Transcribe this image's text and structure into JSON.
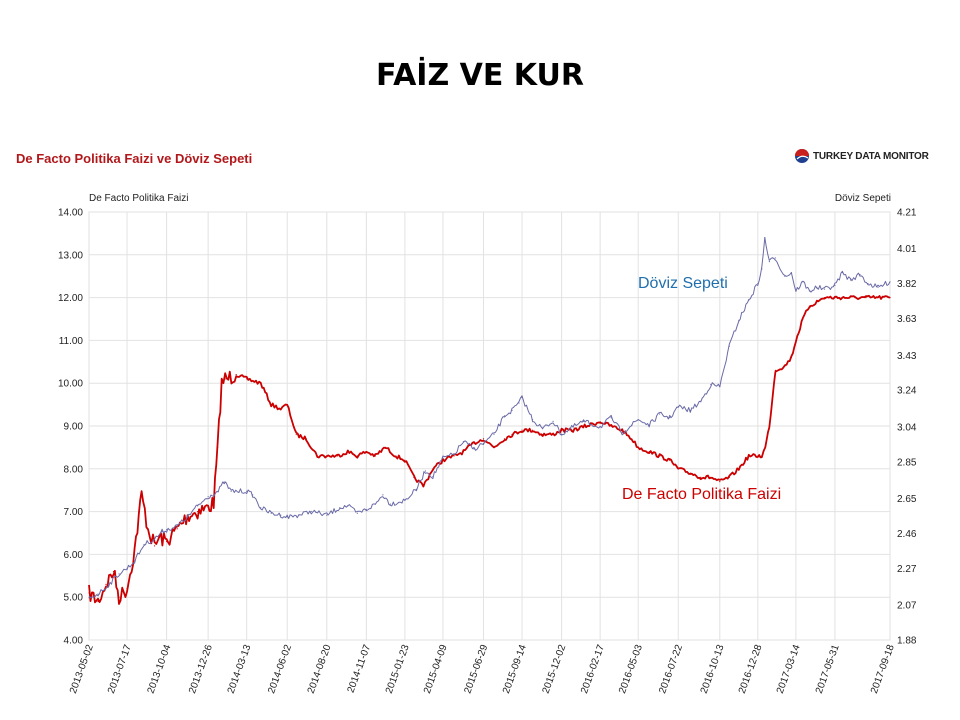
{
  "slide": {
    "title": "FAİZ VE KUR"
  },
  "brand": {
    "name": "TURKEY DATA MONITOR"
  },
  "annotations": {
    "doviz": "Döviz Sepeti",
    "faiz": "De Facto Politika Faizi"
  },
  "colors": {
    "faiz": "#cc0000",
    "doviz": "#6a6aa8",
    "title": "#b2181b",
    "grid": "#e2e2e2"
  },
  "chart_data": {
    "type": "line",
    "title": "De Facto Politika Faizi ve Döviz Sepeti",
    "y_left_label": "De Facto Politika Faizi",
    "y_right_label": "Döviz Sepeti",
    "x_type": "date",
    "x_range": [
      "2013-05-02",
      "2017-09-18"
    ],
    "y_left_range": [
      4.0,
      14.0
    ],
    "y_left_ticks": [
      "4.00",
      "5.00",
      "6.00",
      "7.00",
      "8.00",
      "9.00",
      "10.00",
      "11.00",
      "12.00",
      "13.00",
      "14.00"
    ],
    "y_right_range": [
      1.88,
      4.21
    ],
    "y_right_ticks": [
      "1.88",
      "2.07",
      "2.27",
      "2.46",
      "2.65",
      "2.85",
      "3.04",
      "3.24",
      "3.43",
      "3.63",
      "3.82",
      "4.01",
      "4.21"
    ],
    "x_ticks": [
      "2013-05-02",
      "2013-07-17",
      "2013-10-04",
      "2013-12-26",
      "2014-03-13",
      "2014-06-02",
      "2014-08-20",
      "2014-11-07",
      "2015-01-23",
      "2015-04-09",
      "2015-06-29",
      "2015-09-14",
      "2015-12-02",
      "2016-02-17",
      "2016-05-03",
      "2016-07-22",
      "2016-10-13",
      "2016-12-28",
      "2017-03-14",
      "2017-05-31",
      "2017-09-18"
    ],
    "grid": true,
    "series": [
      {
        "name": "De Facto Politika Faizi",
        "axis": "left",
        "x": [
          "2013-05-02",
          "2013-05-20",
          "2013-06-05",
          "2013-06-20",
          "2013-07-01",
          "2013-07-17",
          "2013-08-01",
          "2013-08-15",
          "2013-08-28",
          "2013-09-10",
          "2013-09-20",
          "2013-10-04",
          "2013-10-25",
          "2013-11-15",
          "2013-12-05",
          "2013-12-26",
          "2014-01-06",
          "2014-01-14",
          "2014-01-22",
          "2014-01-29",
          "2014-02-01",
          "2014-02-20",
          "2014-03-13",
          "2014-04-10",
          "2014-05-01",
          "2014-05-20",
          "2014-06-02",
          "2014-06-20",
          "2014-07-10",
          "2014-08-01",
          "2014-08-20",
          "2014-09-10",
          "2014-10-01",
          "2014-10-20",
          "2014-11-07",
          "2014-11-25",
          "2014-12-15",
          "2015-01-05",
          "2015-01-23",
          "2015-02-10",
          "2015-03-01",
          "2015-03-20",
          "2015-04-09",
          "2015-05-01",
          "2015-05-20",
          "2015-06-10",
          "2015-06-29",
          "2015-07-20",
          "2015-08-10",
          "2015-08-25",
          "2015-09-14",
          "2015-10-05",
          "2015-10-25",
          "2015-11-15",
          "2015-12-02",
          "2015-12-25",
          "2016-01-20",
          "2016-02-17",
          "2016-03-10",
          "2016-04-01",
          "2016-04-20",
          "2016-05-03",
          "2016-05-25",
          "2016-06-15",
          "2016-07-05",
          "2016-07-22",
          "2016-08-15",
          "2016-09-05",
          "2016-09-25",
          "2016-10-13",
          "2016-11-01",
          "2016-11-20",
          "2016-12-10",
          "2016-12-28",
          "2017-01-05",
          "2017-01-12",
          "2017-01-20",
          "2017-02-01",
          "2017-02-20",
          "2017-03-05",
          "2017-03-14",
          "2017-03-28",
          "2017-04-10",
          "2017-04-25",
          "2017-05-10",
          "2017-05-31",
          "2017-06-20",
          "2017-07-10",
          "2017-08-01",
          "2017-08-25",
          "2017-09-18"
        ],
        "values": [
          5.1,
          4.9,
          5.3,
          5.6,
          5.0,
          5.2,
          6.1,
          7.4,
          6.6,
          6.2,
          6.4,
          6.3,
          6.6,
          6.9,
          7.0,
          7.1,
          7.2,
          8.5,
          10.0,
          10.1,
          10.1,
          10.2,
          10.1,
          10.0,
          9.5,
          9.4,
          9.5,
          8.8,
          8.7,
          8.3,
          8.3,
          8.3,
          8.4,
          8.3,
          8.4,
          8.3,
          8.5,
          8.3,
          8.2,
          7.8,
          7.6,
          8.0,
          8.2,
          8.3,
          8.4,
          8.6,
          8.7,
          8.5,
          8.7,
          8.8,
          8.9,
          8.9,
          8.8,
          8.8,
          8.9,
          8.9,
          9.0,
          9.1,
          9.0,
          8.9,
          8.7,
          8.5,
          8.4,
          8.3,
          8.2,
          8.0,
          7.9,
          7.8,
          7.8,
          7.7,
          7.8,
          8.0,
          8.3,
          8.3,
          8.3,
          8.5,
          9.0,
          10.3,
          10.4,
          10.6,
          11.0,
          11.5,
          11.8,
          11.9,
          12.0,
          12.0,
          12.0,
          12.0,
          12.0,
          12.0,
          12.0
        ]
      },
      {
        "name": "Döviz Sepeti",
        "axis": "right",
        "x": [
          "2013-05-02",
          "2013-05-20",
          "2013-06-10",
          "2013-07-01",
          "2013-07-17",
          "2013-08-01",
          "2013-08-20",
          "2013-09-10",
          "2013-09-25",
          "2013-10-04",
          "2013-10-25",
          "2013-11-15",
          "2013-12-05",
          "2013-12-26",
          "2014-01-15",
          "2014-01-27",
          "2014-02-10",
          "2014-03-13",
          "2014-03-25",
          "2014-04-10",
          "2014-05-01",
          "2014-05-20",
          "2014-06-02",
          "2014-06-25",
          "2014-07-20",
          "2014-08-20",
          "2014-09-15",
          "2014-10-01",
          "2014-10-20",
          "2014-11-07",
          "2014-11-25",
          "2014-12-10",
          "2014-12-25",
          "2015-01-23",
          "2015-02-15",
          "2015-03-05",
          "2015-03-20",
          "2015-04-09",
          "2015-05-01",
          "2015-05-20",
          "2015-06-10",
          "2015-06-29",
          "2015-07-20",
          "2015-08-10",
          "2015-08-25",
          "2015-09-08",
          "2015-09-14",
          "2015-10-05",
          "2015-10-25",
          "2015-11-15",
          "2015-12-02",
          "2015-12-25",
          "2016-01-15",
          "2016-02-17",
          "2016-03-10",
          "2016-04-01",
          "2016-04-20",
          "2016-05-03",
          "2016-05-25",
          "2016-06-15",
          "2016-07-05",
          "2016-07-22",
          "2016-08-15",
          "2016-09-05",
          "2016-09-25",
          "2016-10-13",
          "2016-11-01",
          "2016-11-20",
          "2016-12-10",
          "2016-12-28",
          "2017-01-05",
          "2017-01-11",
          "2017-01-20",
          "2017-02-01",
          "2017-02-20",
          "2017-03-05",
          "2017-03-14",
          "2017-03-28",
          "2017-04-10",
          "2017-04-25",
          "2017-05-10",
          "2017-05-31",
          "2017-06-15",
          "2017-07-01",
          "2017-07-20",
          "2017-08-05",
          "2017-08-25",
          "2017-09-18"
        ],
        "values": [
          2.11,
          2.13,
          2.18,
          2.24,
          2.27,
          2.31,
          2.4,
          2.43,
          2.47,
          2.48,
          2.5,
          2.55,
          2.61,
          2.66,
          2.69,
          2.74,
          2.69,
          2.69,
          2.67,
          2.6,
          2.57,
          2.56,
          2.55,
          2.56,
          2.58,
          2.56,
          2.6,
          2.61,
          2.57,
          2.59,
          2.62,
          2.67,
          2.62,
          2.64,
          2.7,
          2.8,
          2.77,
          2.87,
          2.89,
          2.96,
          2.92,
          2.95,
          3.0,
          3.1,
          3.13,
          3.17,
          3.2,
          3.08,
          3.03,
          3.07,
          3.0,
          3.04,
          3.07,
          3.04,
          3.09,
          3.01,
          3.05,
          3.08,
          3.05,
          3.11,
          3.09,
          3.15,
          3.13,
          3.18,
          3.27,
          3.26,
          3.48,
          3.62,
          3.73,
          3.82,
          3.9,
          4.07,
          3.94,
          3.96,
          3.86,
          3.88,
          3.78,
          3.83,
          3.78,
          3.8,
          3.79,
          3.81,
          3.88,
          3.84,
          3.87,
          3.82,
          3.8,
          3.83
        ]
      }
    ]
  }
}
